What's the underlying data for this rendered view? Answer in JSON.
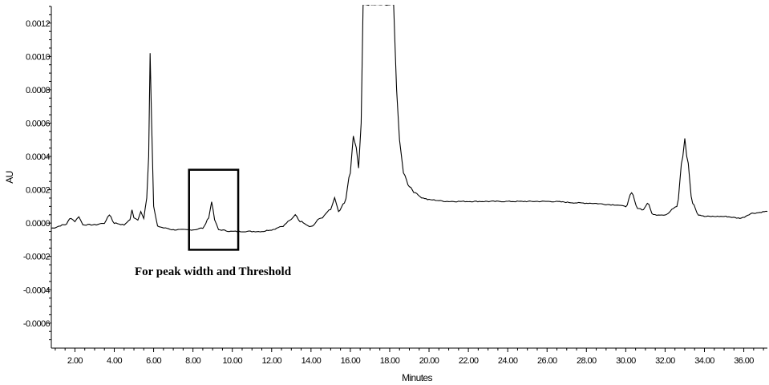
{
  "chart_data": {
    "type": "line",
    "title": "",
    "xlabel": "Minutes",
    "ylabel": "AU",
    "xlim": [
      0.8,
      37.2
    ],
    "ylim": [
      -0.00075,
      0.0013
    ],
    "grid": false,
    "x_ticks": [
      2.0,
      4.0,
      6.0,
      8.0,
      10.0,
      12.0,
      14.0,
      16.0,
      18.0,
      20.0,
      22.0,
      24.0,
      26.0,
      28.0,
      30.0,
      32.0,
      34.0,
      36.0
    ],
    "x_tick_labels": [
      "2.00",
      "4.00",
      "6.00",
      "8.00",
      "10.00",
      "12.00",
      "14.00",
      "16.00",
      "18.00",
      "20.00",
      "22.00",
      "24.00",
      "26.00",
      "28.00",
      "30.00",
      "32.00",
      "34.00",
      "36.00"
    ],
    "y_ticks": [
      -0.0006,
      -0.0004,
      -0.0002,
      0.0,
      0.0002,
      0.0004,
      0.0006,
      0.0008,
      0.001,
      0.0012
    ],
    "y_tick_labels": [
      "-0.0006",
      "-0.0004",
      "-0.0002",
      "0.0000",
      "0.0002",
      "0.0004",
      "0.0006",
      "0.0008",
      "0.0010",
      "0.0012"
    ],
    "series": [
      {
        "x": [
          0.8,
          1.5,
          1.8,
          2.0,
          2.2,
          2.4,
          3.0,
          3.5,
          3.75,
          4.0,
          4.5,
          4.8,
          4.9,
          5.0,
          5.2,
          5.35,
          5.5,
          5.65,
          5.75,
          5.82,
          5.9,
          6.0,
          6.2,
          6.6,
          7.0,
          8.0,
          8.5,
          8.8,
          8.95,
          9.1,
          9.3,
          10.0,
          11.0,
          11.5,
          12.0,
          12.5,
          13.0,
          13.2,
          13.45,
          14.0,
          14.5,
          15.0,
          15.2,
          15.4,
          15.7,
          16.0,
          16.15,
          16.3,
          16.42,
          16.55,
          16.65,
          16.75,
          17.0,
          17.5,
          18.0,
          18.2,
          18.35,
          18.5,
          18.7,
          19.0,
          19.3,
          19.7,
          20.0,
          21.0,
          22.0,
          24.0,
          26.0,
          28.0,
          29.5,
          30.0,
          30.3,
          30.6,
          30.9,
          31.1,
          31.4,
          32.0,
          32.6,
          32.9,
          33.0,
          33.1,
          33.4,
          33.7,
          34.0,
          35.0,
          35.8,
          36.5,
          37.2
        ],
        "y": [
          -3e-05,
          -1e-05,
          3e-05,
          1e-05,
          4e-05,
          -1e-05,
          -1e-05,
          0.0,
          5e-05,
          0.0,
          -1e-05,
          2e-05,
          8e-05,
          3e-05,
          2e-05,
          7e-05,
          3e-05,
          0.00015,
          0.0004,
          0.00102,
          0.0006,
          0.0001,
          -2e-05,
          -3e-05,
          -4e-05,
          -4e-05,
          -3e-05,
          3e-05,
          0.00013,
          2e-05,
          -4e-05,
          -5e-05,
          -5e-05,
          -5e-05,
          -4e-05,
          -2e-05,
          2e-05,
          5e-05,
          1e-05,
          -2e-05,
          3e-05,
          8e-05,
          0.00015,
          7e-05,
          0.00012,
          0.0003,
          0.00052,
          0.00045,
          0.00033,
          0.0006,
          0.00131,
          0.00131,
          0.00131,
          0.00131,
          0.00131,
          0.00131,
          0.0008,
          0.0005,
          0.0003,
          0.00022,
          0.00018,
          0.00015,
          0.00014,
          0.00013,
          0.00013,
          0.00013,
          0.00013,
          0.00012,
          0.00011,
          0.0001,
          0.00018,
          9e-05,
          8e-05,
          0.00012,
          5e-05,
          5e-05,
          0.0001,
          0.0004,
          0.00051,
          0.0004,
          0.00012,
          5e-05,
          4e-05,
          4e-05,
          3e-05,
          6e-05,
          7e-05
        ]
      }
    ],
    "annotations": [
      {
        "type": "box",
        "x": [
          7.8,
          10.3
        ],
        "y": [
          -0.00016,
          0.00032
        ]
      },
      {
        "type": "text",
        "text": "For peak width and Threshold"
      }
    ]
  }
}
